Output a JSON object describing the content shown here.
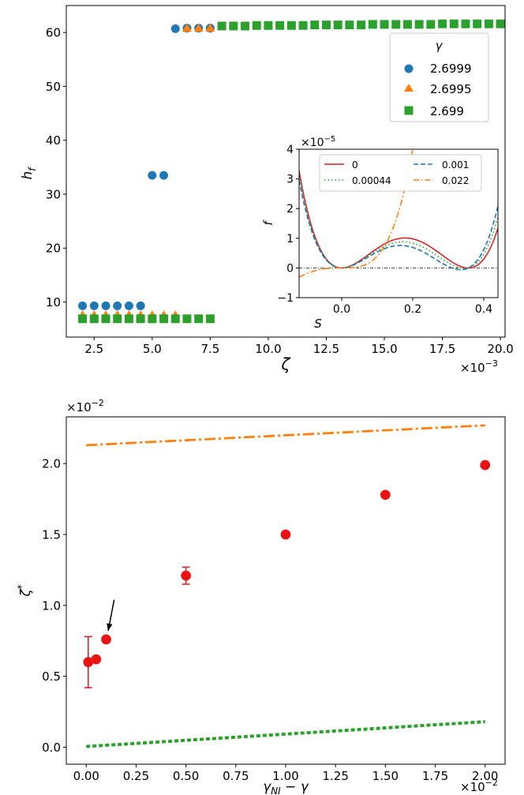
{
  "chart_data": [
    {
      "type": "scatter",
      "id": "top",
      "xlabel": "ζ",
      "ylabel": "h",
      "ylabel_sub": "f",
      "x_scale_label": "×10",
      "x_scale_exp": "−3",
      "xlim": [
        1.3,
        20.2
      ],
      "ylim": [
        3.5,
        65
      ],
      "xticks": [
        2.5,
        5.0,
        7.5,
        10.0,
        12.5,
        15.0,
        17.5,
        20.0
      ],
      "xtick_labels": [
        "2.5",
        "5.0",
        "7.5",
        "10.0",
        "12.5",
        "15.0",
        "17.5",
        "20.0"
      ],
      "yticks": [
        10,
        20,
        30,
        40,
        50,
        60
      ],
      "ytick_labels": [
        "10",
        "20",
        "30",
        "40",
        "50",
        "60"
      ],
      "legend_title": "γ",
      "legend_position": "top-right",
      "series": [
        {
          "name": "2.6999",
          "marker": "circle",
          "color": "#1f77b4",
          "points": [
            [
              2.0,
              9.3
            ],
            [
              2.5,
              9.3
            ],
            [
              3.0,
              9.3
            ],
            [
              3.5,
              9.3
            ],
            [
              4.0,
              9.3
            ],
            [
              4.5,
              9.3
            ],
            [
              5.0,
              33.5
            ],
            [
              5.5,
              33.5
            ],
            [
              6.0,
              60.7
            ],
            [
              6.5,
              60.8
            ],
            [
              7.0,
              60.8
            ],
            [
              7.5,
              60.8
            ]
          ]
        },
        {
          "name": "2.6995",
          "marker": "triangle",
          "color": "#ff7f0e",
          "points": [
            [
              2.0,
              7.6
            ],
            [
              2.5,
              7.6
            ],
            [
              3.0,
              7.6
            ],
            [
              3.5,
              7.6
            ],
            [
              4.0,
              7.6
            ],
            [
              4.5,
              7.6
            ],
            [
              5.0,
              7.6
            ],
            [
              5.5,
              7.6
            ],
            [
              6.0,
              7.6
            ],
            [
              6.5,
              60.8
            ],
            [
              7.0,
              60.8
            ],
            [
              7.5,
              60.8
            ]
          ]
        },
        {
          "name": "2.699",
          "marker": "square",
          "color": "#2ca02c",
          "points": [
            [
              2.0,
              6.9
            ],
            [
              2.5,
              6.9
            ],
            [
              3.0,
              6.9
            ],
            [
              3.5,
              6.9
            ],
            [
              4.0,
              6.9
            ],
            [
              4.5,
              6.9
            ],
            [
              5.0,
              6.9
            ],
            [
              5.5,
              6.9
            ],
            [
              6.0,
              6.9
            ],
            [
              6.5,
              6.9
            ],
            [
              7.0,
              6.9
            ],
            [
              7.5,
              6.9
            ],
            [
              8.0,
              61.2
            ],
            [
              8.5,
              61.2
            ],
            [
              9.0,
              61.2
            ],
            [
              9.5,
              61.3
            ],
            [
              10.0,
              61.3
            ],
            [
              10.5,
              61.3
            ],
            [
              11.0,
              61.3
            ],
            [
              11.5,
              61.3
            ],
            [
              12.0,
              61.4
            ],
            [
              12.5,
              61.4
            ],
            [
              13.0,
              61.4
            ],
            [
              13.5,
              61.4
            ],
            [
              14.0,
              61.4
            ],
            [
              14.5,
              61.5
            ],
            [
              15.0,
              61.5
            ],
            [
              15.5,
              61.5
            ],
            [
              16.0,
              61.5
            ],
            [
              16.5,
              61.5
            ],
            [
              17.0,
              61.5
            ],
            [
              17.5,
              61.6
            ],
            [
              18.0,
              61.6
            ],
            [
              18.5,
              61.6
            ],
            [
              19.0,
              61.6
            ],
            [
              19.5,
              61.6
            ],
            [
              20.0,
              61.6
            ]
          ]
        }
      ]
    },
    {
      "type": "line",
      "id": "inset",
      "xlabel": "S",
      "ylabel": "f",
      "y_scale_label": "×10",
      "y_scale_exp": "−5",
      "xlim": [
        -0.12,
        0.44
      ],
      "ylim": [
        -1,
        4
      ],
      "xticks": [
        0.0,
        0.2,
        0.4
      ],
      "xtick_labels": [
        "0.0",
        "0.2",
        "0.4"
      ],
      "yticks": [
        -1,
        0,
        1,
        2,
        3,
        4
      ],
      "ytick_labels": [
        "−1",
        "0",
        "1",
        "2",
        "3",
        "4"
      ],
      "reference_line": 0,
      "series": [
        {
          "name": "0",
          "color": "#d62728",
          "style": "solid",
          "curve": {
            "a": 1000,
            "b": 0.36,
            "c": 0.353
          }
        },
        {
          "name": "0.00044",
          "color": "#2ca02c",
          "style": "dotted",
          "curve": {
            "a": 1000,
            "b": 0.335,
            "c": 0.355
          }
        },
        {
          "name": "0.001",
          "color": "#1f77b4",
          "style": "dashed",
          "curve": {
            "a": 1000,
            "b": 0.31,
            "c": 0.357
          }
        },
        {
          "name": "0.022",
          "color": "#ff7f0e",
          "style": "dashdot",
          "curve": {
            "a": 1000,
            "b": -0.3,
            "c": 0.0
          }
        }
      ]
    },
    {
      "type": "scatter",
      "id": "bottom",
      "xlabel": "γ",
      "xlabel_sub": "NI",
      "xlabel_tail": " − γ",
      "ylabel": "ζ",
      "ylabel_sup": "*",
      "x_scale_label": "×10",
      "x_scale_exp": "−2",
      "y_scale_label": "×10",
      "y_scale_exp": "−2",
      "xlim": [
        -0.1,
        2.1
      ],
      "ylim": [
        -0.12,
        2.33
      ],
      "xticks": [
        0.0,
        0.25,
        0.5,
        0.75,
        1.0,
        1.25,
        1.5,
        1.75,
        2.0
      ],
      "xtick_labels": [
        "0.00",
        "0.25",
        "0.50",
        "0.75",
        "1.00",
        "1.25",
        "1.50",
        "1.75",
        "2.00"
      ],
      "yticks": [
        0.0,
        0.5,
        1.0,
        1.5,
        2.0
      ],
      "ytick_labels": [
        "0.0",
        "0.5",
        "1.0",
        "1.5",
        "2.0"
      ],
      "points": [
        {
          "x": 0.01,
          "y": 0.6,
          "err_low": 0.42,
          "err_high": 0.78
        },
        {
          "x": 0.05,
          "y": 0.62
        },
        {
          "x": 0.1,
          "y": 0.76
        },
        {
          "x": 0.5,
          "y": 1.21,
          "err_low": 1.15,
          "err_high": 1.27
        },
        {
          "x": 1.0,
          "y": 1.5
        },
        {
          "x": 1.5,
          "y": 1.78
        },
        {
          "x": 2.0,
          "y": 1.99
        }
      ],
      "point_color": "#ee1111",
      "upper_line": {
        "x": [
          0.0,
          2.0
        ],
        "y": [
          2.13,
          2.27
        ],
        "color": "#ff7f0e",
        "style": "dashdot"
      },
      "lower_line": {
        "x": [
          0.0,
          2.0
        ],
        "y": [
          0.005,
          0.18
        ],
        "color": "#2ca02c",
        "style": "dotted"
      },
      "arrow": {
        "from": [
          0.14,
          1.04
        ],
        "to": [
          0.11,
          0.82
        ]
      }
    }
  ]
}
